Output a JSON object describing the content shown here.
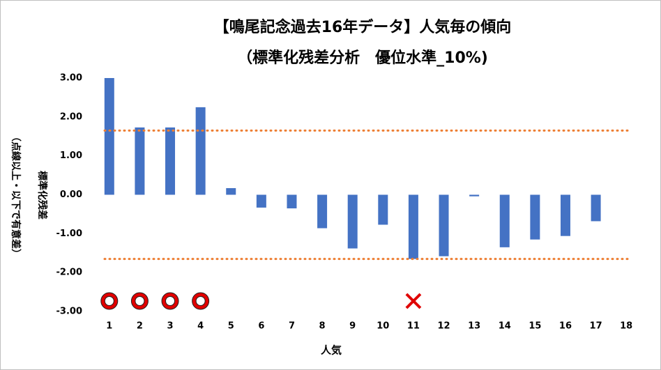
{
  "chart_data": {
    "type": "bar",
    "title": "【鳴尾記念過去16年データ】人気毎の傾向",
    "subtitle": "（標準化残差分析　優位水準_10%)",
    "y_label": "標準化残差",
    "y_label_note": "（点線以上・以下で有意差）",
    "x_label": "人気",
    "categories": [
      1,
      2,
      3,
      4,
      5,
      6,
      7,
      8,
      9,
      10,
      11,
      12,
      13,
      14,
      15,
      16,
      17,
      18
    ],
    "values": [
      3.0,
      1.73,
      1.73,
      2.25,
      0.17,
      -0.33,
      -0.35,
      -0.86,
      -1.38,
      -0.77,
      -1.65,
      -1.58,
      -0.04,
      -1.35,
      -1.15,
      -1.06,
      -0.68,
      null
    ],
    "color": "#4472c4",
    "ylim": [
      -3,
      3
    ],
    "yticks": [
      {
        "value": 3,
        "label": "3.00"
      },
      {
        "value": 2,
        "label": "2.00"
      },
      {
        "value": 1,
        "label": "1.00"
      },
      {
        "value": 0,
        "label": "0.00"
      },
      {
        "value": -1,
        "label": "-1.00"
      },
      {
        "value": -2,
        "label": "-2.00"
      },
      {
        "value": -3,
        "label": "-3.00"
      }
    ],
    "reference_lines": [
      {
        "value": 1.65,
        "color": "#ed7d31"
      },
      {
        "value": -1.65,
        "color": "#ed7d31"
      }
    ],
    "markers": [
      {
        "category": 1,
        "shape": "circle"
      },
      {
        "category": 2,
        "shape": "circle"
      },
      {
        "category": 3,
        "shape": "circle"
      },
      {
        "category": 4,
        "shape": "circle"
      },
      {
        "category": 11,
        "shape": "cross"
      }
    ]
  }
}
